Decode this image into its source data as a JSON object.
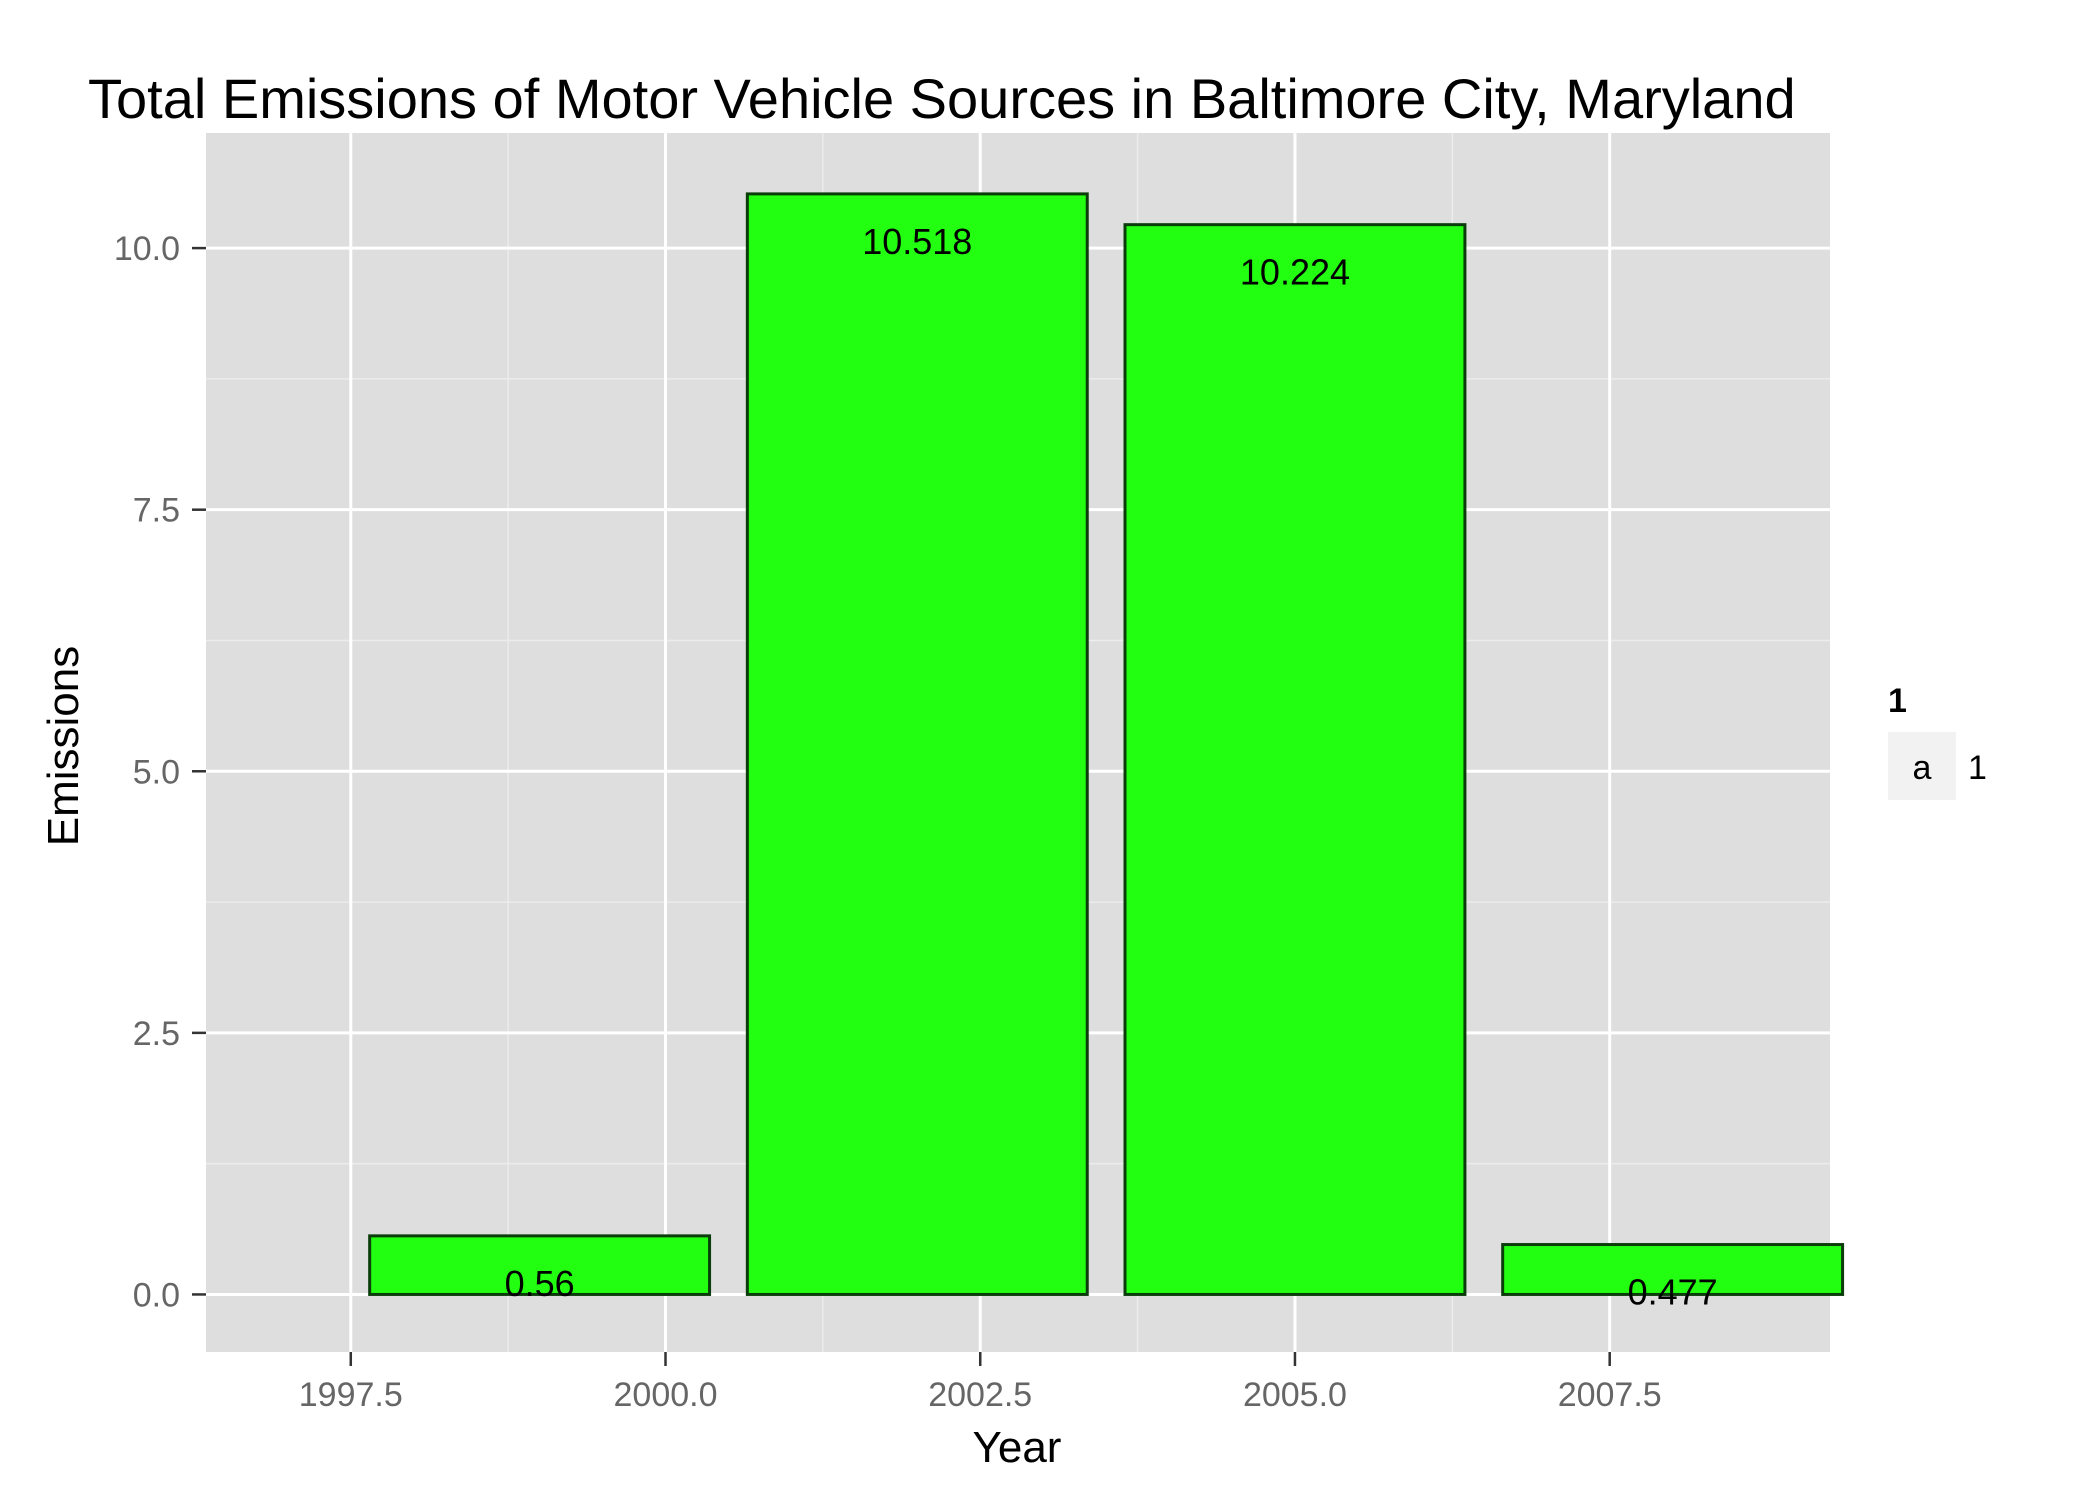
{
  "chart_data": {
    "type": "bar",
    "title": "Total Emissions of Motor Vehicle Sources in Baltimore City, Maryland",
    "xlabel": "Year",
    "ylabel": "Emissions",
    "x": [
      1999,
      2002,
      2005,
      2008
    ],
    "values": [
      0.56,
      10.518,
      10.224,
      0.477
    ],
    "data_labels": [
      "0.56",
      "10.518",
      "10.224",
      "0.477"
    ],
    "bar_width_years": 2.7,
    "xlim": [
      1996.35,
      2009.25
    ],
    "ylim": [
      -0.55,
      11.1
    ],
    "x_ticks": [
      1997.5,
      2000.0,
      2002.5,
      2005.0,
      2007.5
    ],
    "x_tick_labels": [
      "1997.5",
      "2000.0",
      "2002.5",
      "2005.0",
      "2007.5"
    ],
    "y_ticks": [
      0.0,
      2.5,
      5.0,
      7.5,
      10.0
    ],
    "y_tick_labels": [
      "0.0",
      "2.5",
      "5.0",
      "7.5",
      "10.0"
    ],
    "grid": true,
    "colors": {
      "bar_fill": "#22ff11",
      "bar_outline": "#0b3d0b",
      "panel_bg": "#dedede",
      "grid": "#ffffff"
    },
    "legend": {
      "title": "1",
      "key_symbol": "a",
      "label": "1",
      "placement": "right"
    }
  }
}
